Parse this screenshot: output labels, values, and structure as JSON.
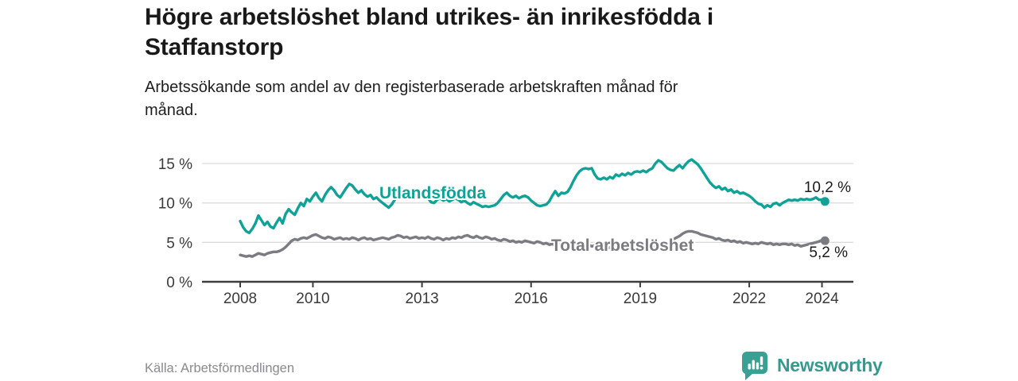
{
  "header": {
    "title": "Högre arbetslöshet bland utrikes- än inrikesfödda i Staffanstorp",
    "title_lines": [
      "Högre arbetslöshet bland utrikes- än inrikesfödda i",
      "Staffanstorp"
    ],
    "subtitle": "Arbetssökande som andel av den registerbaserade arbetskraften månad för månad.",
    "subtitle_lines": [
      "Arbetssökande som andel av den registerbaserade arbetskraften månad för",
      "månad."
    ]
  },
  "footer": {
    "source": "Källa: Arbetsförmedlingen",
    "brand": "Newsworthy"
  },
  "colors": {
    "foreign_born": "#10a297",
    "total": "#7b7b82",
    "brand_teal": "#35998e",
    "axis_text": "#3a3a3a",
    "axis_line": "#3d3d3d",
    "gridline": "#dcdcdc"
  },
  "chart_data": {
    "type": "line",
    "x_unit": "month",
    "x_start": "2008-01",
    "x_end": "2024-02",
    "ylim": [
      0,
      16.5
    ],
    "grid": true,
    "legend_position": "inline-labels",
    "y_ticks": [
      {
        "value": 0,
        "label": "0 %"
      },
      {
        "value": 5,
        "label": "5 %"
      },
      {
        "value": 10,
        "label": "10 %"
      },
      {
        "value": 15,
        "label": "15 %"
      }
    ],
    "x_ticks": [
      {
        "value": 2008,
        "label": "2008"
      },
      {
        "value": 2010,
        "label": "2010"
      },
      {
        "value": 2013,
        "label": "2013"
      },
      {
        "value": 2016,
        "label": "2016"
      },
      {
        "value": 2019,
        "label": "2019"
      },
      {
        "value": 2022,
        "label": "2022"
      },
      {
        "value": 2024,
        "label": "2024"
      }
    ],
    "series": [
      {
        "id": "utlandsfodda",
        "label": "Utlandsfödda",
        "color": "#10a297",
        "end_label": "10,2 %",
        "end_value": 10.2,
        "values": [
          7.7,
          6.9,
          6.4,
          6.2,
          6.7,
          7.4,
          8.4,
          7.8,
          7.2,
          7.6,
          7.0,
          6.8,
          7.5,
          8.1,
          7.4,
          8.6,
          9.2,
          8.8,
          8.5,
          9.3,
          10.0,
          9.6,
          10.5,
          10.2,
          10.8,
          11.3,
          10.6,
          10.2,
          11.0,
          11.6,
          12.0,
          11.6,
          11.0,
          10.7,
          11.3,
          11.9,
          12.4,
          12.2,
          11.7,
          11.3,
          11.6,
          11.1,
          10.8,
          11.0,
          10.5,
          10.7,
          10.3,
          10.0,
          9.7,
          9.4,
          9.8,
          10.4,
          11.2,
          11.9,
          11.4,
          11.1,
          11.3,
          11.0,
          10.8,
          11.1,
          11.4,
          11.0,
          10.6,
          10.1,
          10.0,
          10.4,
          10.6,
          10.3,
          10.5,
          10.2,
          10.4,
          10.6,
          10.4,
          10.1,
          10.3,
          10.0,
          9.8,
          10.1,
          9.9,
          9.7,
          9.5,
          9.6,
          9.5,
          9.6,
          9.7,
          10.0,
          10.5,
          11.0,
          11.3,
          10.9,
          10.7,
          10.9,
          10.6,
          10.8,
          10.9,
          10.7,
          10.3,
          10.0,
          9.7,
          9.6,
          9.7,
          9.8,
          10.2,
          10.9,
          11.5,
          10.9,
          11.3,
          11.2,
          11.4,
          12.0,
          12.8,
          13.5,
          14.0,
          14.3,
          14.4,
          14.3,
          14.4,
          13.6,
          13.1,
          13.0,
          13.2,
          13.0,
          13.3,
          13.1,
          13.6,
          13.4,
          13.7,
          13.5,
          13.8,
          13.6,
          13.9,
          14.0,
          13.9,
          14.1,
          13.9,
          14.2,
          14.4,
          15.0,
          15.4,
          15.2,
          14.8,
          14.4,
          14.2,
          14.1,
          14.5,
          14.8,
          14.4,
          14.9,
          15.3,
          15.5,
          15.2,
          14.9,
          14.4,
          13.8,
          13.2,
          12.6,
          12.2,
          11.9,
          12.1,
          11.7,
          11.9,
          11.5,
          11.7,
          11.3,
          11.5,
          11.2,
          11.3,
          11.1,
          10.9,
          10.6,
          10.2,
          9.9,
          9.8,
          9.4,
          9.7,
          9.5,
          9.9,
          10.0,
          9.7,
          10.0,
          10.2,
          10.4,
          10.3,
          10.4,
          10.3,
          10.5,
          10.4,
          10.5,
          10.4,
          10.5,
          10.7,
          10.4,
          10.4,
          10.2
        ]
      },
      {
        "id": "total",
        "label": "Total arbetslöshet",
        "color": "#7b7b82",
        "end_label": "5,2 %",
        "end_value": 5.2,
        "values": [
          3.4,
          3.3,
          3.2,
          3.3,
          3.2,
          3.4,
          3.6,
          3.5,
          3.4,
          3.6,
          3.7,
          3.8,
          3.8,
          3.9,
          4.1,
          4.4,
          4.8,
          5.2,
          5.4,
          5.3,
          5.5,
          5.6,
          5.5,
          5.7,
          5.9,
          6.0,
          5.8,
          5.6,
          5.5,
          5.7,
          5.6,
          5.4,
          5.5,
          5.6,
          5.4,
          5.5,
          5.4,
          5.6,
          5.5,
          5.3,
          5.5,
          5.6,
          5.4,
          5.5,
          5.3,
          5.4,
          5.5,
          5.6,
          5.5,
          5.4,
          5.6,
          5.7,
          5.9,
          5.8,
          5.6,
          5.7,
          5.5,
          5.6,
          5.7,
          5.5,
          5.6,
          5.5,
          5.7,
          5.5,
          5.4,
          5.6,
          5.5,
          5.3,
          5.5,
          5.4,
          5.6,
          5.5,
          5.7,
          5.6,
          5.8,
          5.9,
          5.7,
          5.6,
          5.8,
          5.6,
          5.5,
          5.7,
          5.6,
          5.4,
          5.5,
          5.3,
          5.2,
          5.4,
          5.3,
          5.1,
          5.2,
          5.0,
          5.1,
          5.0,
          5.2,
          5.1,
          5.0,
          4.9,
          5.1,
          5.0,
          4.8,
          4.9,
          4.7,
          4.8,
          4.6,
          4.7,
          4.9,
          4.8,
          4.7,
          4.8,
          4.6,
          4.7,
          4.5,
          4.6,
          4.8,
          4.7,
          4.5,
          4.6,
          4.4,
          4.5,
          4.4,
          4.5,
          4.3,
          4.4,
          4.6,
          4.5,
          4.3,
          4.4,
          4.2,
          4.3,
          4.5,
          4.4,
          4.5,
          4.6,
          4.4,
          4.5,
          4.7,
          4.6,
          4.8,
          4.7,
          4.9,
          5.0,
          5.2,
          5.4,
          5.6,
          5.8,
          6.1,
          6.3,
          6.4,
          6.4,
          6.3,
          6.2,
          6.0,
          5.9,
          5.8,
          5.7,
          5.6,
          5.4,
          5.5,
          5.3,
          5.2,
          5.3,
          5.1,
          5.2,
          5.0,
          5.1,
          4.9,
          5.0,
          4.9,
          4.8,
          4.9,
          4.8,
          5.0,
          4.9,
          4.8,
          4.9,
          4.7,
          4.8,
          4.7,
          4.8,
          4.8,
          4.7,
          4.8,
          4.6,
          4.7,
          4.5,
          4.6,
          4.7,
          4.8,
          4.9,
          5.0,
          5.1,
          5.3,
          5.2
        ]
      }
    ]
  }
}
